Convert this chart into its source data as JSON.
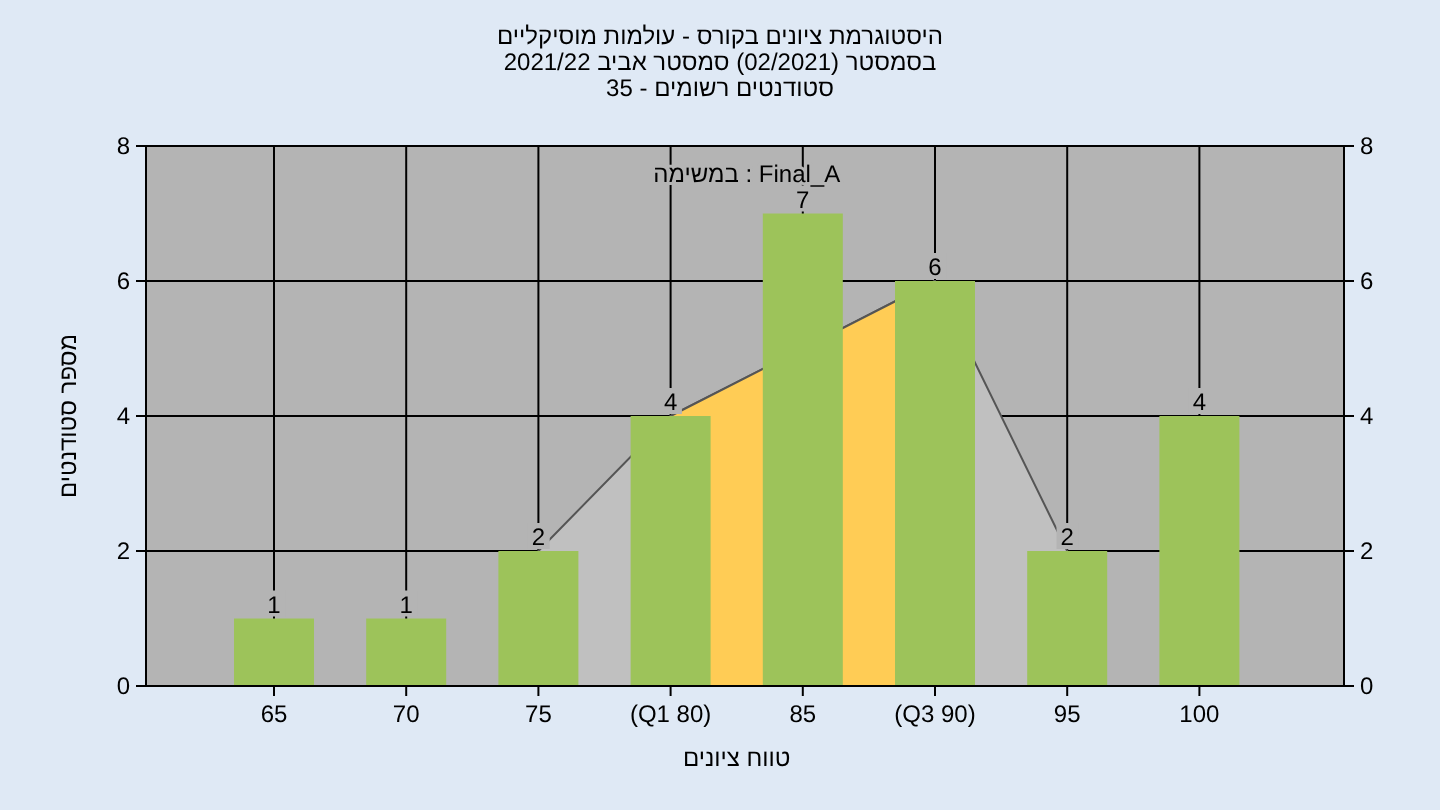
{
  "chart_data": {
    "type": "bar",
    "title": "היסטוגרמת ציונים בקורס - עולמות מוסיקליים",
    "subtitle": "בסמסטר  (02/2021)  סמסטר אביב 2021/22",
    "xlabel": "טווח ציונים",
    "ylabel": "מספר סטודנטים",
    "annotations": [
      "סטודנטים רשומים - 35",
      "במשימה : Final_A"
    ],
    "categories": [
      "65",
      "70",
      "75",
      "(Q1 80)",
      "85",
      "(Q3 90)",
      "95",
      "100"
    ],
    "series": [
      {
        "type": "area",
        "color": "#c0c0c0",
        "values": [
          null,
          null,
          2,
          4,
          null,
          6,
          2,
          null
        ]
      },
      {
        "type": "area",
        "color": "#ffcc55",
        "values": [
          null,
          null,
          null,
          4,
          null,
          6,
          null,
          null
        ]
      },
      {
        "color": "#9dc35a",
        "values": [
          1,
          1,
          2,
          4,
          7,
          6,
          2,
          4
        ],
        "value_labels": [
          "1",
          "1",
          "2",
          "4",
          "7",
          "6",
          "2",
          "4"
        ]
      }
    ],
    "ylim": [
      0,
      8
    ],
    "yticks": [
      0,
      2,
      4,
      6,
      8
    ],
    "y2lim": [
      0,
      8
    ],
    "y2ticks": [
      0,
      2,
      4,
      6,
      8
    ],
    "grid": true
  }
}
